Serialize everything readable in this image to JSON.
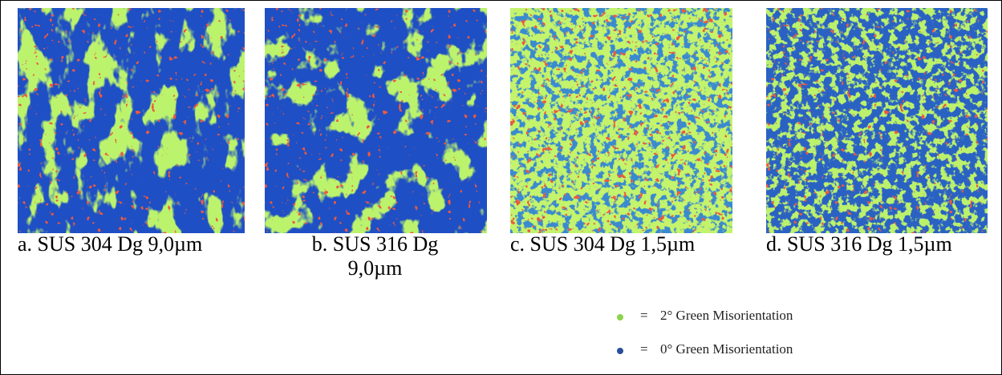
{
  "figure": {
    "panels": [
      {
        "caption": "a. SUS 304 Dg 9,0µm"
      },
      {
        "caption": "b. SUS 316 Dg 9,0µm"
      },
      {
        "caption": "c. SUS 304 Dg 1,5µm"
      },
      {
        "caption": "d. SUS 316 Dg 1,5µm"
      }
    ],
    "legend": [
      {
        "symbol": "=",
        "text": "2° Green Misorientation"
      },
      {
        "symbol": "=",
        "text": "0° Green Misorientation"
      }
    ]
  }
}
